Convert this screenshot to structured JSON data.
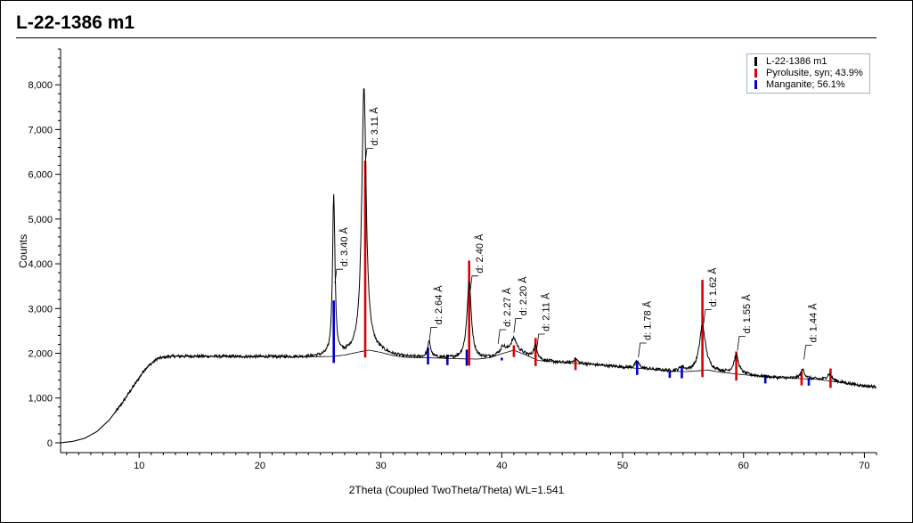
{
  "title": "L-22-1386 m1",
  "chart_data": {
    "type": "line",
    "xlabel": "2Theta (Coupled TwoTheta/Theta) WL=1.541",
    "ylabel": "Counts",
    "xlim": [
      3,
      71
    ],
    "ylim": [
      0,
      8800
    ],
    "xticks": [
      10,
      20,
      30,
      40,
      50,
      60,
      70
    ],
    "yticks": [
      0,
      1000,
      2000,
      3000,
      4000,
      5000,
      6000,
      7000,
      8000
    ],
    "ytick_labels": [
      "0",
      "1,000",
      "2,000",
      "3,000",
      "4,000",
      "5,000",
      "6,000",
      "7,000",
      "8,000"
    ],
    "legend": [
      {
        "name": "L-22-1386 m1",
        "color": "#000000"
      },
      {
        "name": "Pyrolusite, syn; 43.9%",
        "color": "#e00000"
      },
      {
        "name": "Manganite; 56.1%",
        "color": "#0000cc"
      }
    ],
    "background_points": [
      [
        3.5,
        0
      ],
      [
        4.5,
        30
      ],
      [
        5.5,
        100
      ],
      [
        6.5,
        250
      ],
      [
        7.5,
        500
      ],
      [
        8.5,
        850
      ],
      [
        9.5,
        1250
      ],
      [
        10.5,
        1650
      ],
      [
        11.5,
        1880
      ],
      [
        12.5,
        1930
      ],
      [
        14,
        1935
      ],
      [
        16,
        1930
      ],
      [
        18,
        1925
      ],
      [
        20,
        1925
      ],
      [
        22,
        1920
      ],
      [
        24,
        1920
      ],
      [
        26,
        1930
      ],
      [
        27,
        1960
      ],
      [
        28,
        2020
      ],
      [
        29,
        2070
      ],
      [
        30,
        2020
      ],
      [
        31,
        1950
      ],
      [
        32,
        1910
      ],
      [
        34,
        1900
      ],
      [
        36,
        1880
      ],
      [
        38,
        1870
      ],
      [
        39,
        1900
      ],
      [
        40,
        1990
      ],
      [
        41,
        2070
      ],
      [
        42,
        1960
      ],
      [
        43,
        1840
      ],
      [
        45,
        1790
      ],
      [
        47,
        1760
      ],
      [
        50,
        1690
      ],
      [
        52,
        1650
      ],
      [
        54,
        1600
      ],
      [
        55,
        1590
      ],
      [
        56,
        1600
      ],
      [
        57,
        1630
      ],
      [
        58,
        1580
      ],
      [
        60,
        1520
      ],
      [
        62,
        1470
      ],
      [
        64,
        1440
      ],
      [
        66,
        1420
      ],
      [
        68,
        1350
      ],
      [
        70,
        1270
      ],
      [
        71,
        1250
      ]
    ],
    "peaks": [
      {
        "x": 26.1,
        "height": 3600,
        "width": 0.12
      },
      {
        "x": 28.6,
        "height": 5900,
        "width": 0.22
      },
      {
        "x": 34.0,
        "height": 350,
        "width": 0.15
      },
      {
        "x": 37.3,
        "height": 1700,
        "width": 0.22
      },
      {
        "x": 40.1,
        "height": 150,
        "width": 0.2
      },
      {
        "x": 41.0,
        "height": 250,
        "width": 0.3
      },
      {
        "x": 42.8,
        "height": 300,
        "width": 0.2
      },
      {
        "x": 46.1,
        "height": 100,
        "width": 0.2
      },
      {
        "x": 51.2,
        "height": 150,
        "width": 0.2
      },
      {
        "x": 54.9,
        "height": 100,
        "width": 0.2
      },
      {
        "x": 56.6,
        "height": 1000,
        "width": 0.3
      },
      {
        "x": 59.4,
        "height": 400,
        "width": 0.25
      },
      {
        "x": 64.9,
        "height": 200,
        "width": 0.2
      },
      {
        "x": 67.1,
        "height": 150,
        "width": 0.25
      }
    ],
    "pyrolusite_sticks": [
      {
        "x": 28.7,
        "y": 6300
      },
      {
        "x": 37.3,
        "y": 4070
      },
      {
        "x": 41.0,
        "y": 2180
      },
      {
        "x": 42.8,
        "y": 2340
      },
      {
        "x": 46.1,
        "y": 1880
      },
      {
        "x": 56.6,
        "y": 3640
      },
      {
        "x": 59.4,
        "y": 2040
      },
      {
        "x": 64.8,
        "y": 1600
      },
      {
        "x": 67.2,
        "y": 1660
      }
    ],
    "manganite_sticks": [
      {
        "x": 26.1,
        "y": 3180
      },
      {
        "x": 33.9,
        "y": 2130
      },
      {
        "x": 35.5,
        "y": 1970
      },
      {
        "x": 37.1,
        "y": 2080
      },
      {
        "x": 40.0,
        "y": 1900
      },
      {
        "x": 51.2,
        "y": 1820
      },
      {
        "x": 53.9,
        "y": 1620
      },
      {
        "x": 54.9,
        "y": 1710
      },
      {
        "x": 61.8,
        "y": 1520
      },
      {
        "x": 65.4,
        "y": 1450
      }
    ],
    "annotations": [
      {
        "text": "d: 3.40 Å",
        "x": 26.2,
        "y": 3600
      },
      {
        "text": "d: 3.11 Å",
        "x": 28.7,
        "y": 6300
      },
      {
        "text": "d: 2.64 Å",
        "x": 34.0,
        "y": 2300
      },
      {
        "text": "d: 2.40 Å",
        "x": 37.4,
        "y": 3450
      },
      {
        "text": "d: 2.27 Å",
        "x": 39.7,
        "y": 2250
      },
      {
        "text": "d: 2.20 Å",
        "x": 41.0,
        "y": 2500
      },
      {
        "text": "d: 2.11 Å",
        "x": 42.9,
        "y": 2150
      },
      {
        "text": "d: 1.78 Å",
        "x": 51.3,
        "y": 1950
      },
      {
        "text": "d: 1.62 Å",
        "x": 56.7,
        "y": 2700
      },
      {
        "text": "d: 1.55 Å",
        "x": 59.5,
        "y": 2100
      },
      {
        "text": "d: 1.44 Å",
        "x": 65.0,
        "y": 1900
      }
    ]
  }
}
